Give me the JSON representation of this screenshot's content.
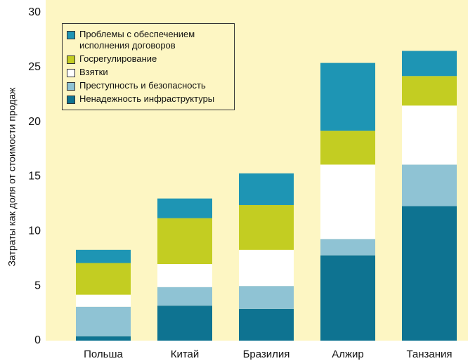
{
  "chart_data": {
    "type": "stacked_bar",
    "y_label": "Затраты как доля от стоимости продаж",
    "categories": [
      "Польша",
      "Китай",
      "Бразилия",
      "Алжир",
      "Танзания"
    ],
    "series": [
      {
        "name": "Ненадежность инфраструктуры",
        "color": "#0e7391",
        "values": [
          0.4,
          3.2,
          2.9,
          7.8,
          12.3
        ]
      },
      {
        "name": "Преступность и безопасность",
        "color": "#8fc3d4",
        "values": [
          2.7,
          1.7,
          2.1,
          1.5,
          3.8
        ]
      },
      {
        "name": "Взятки",
        "color": "#ffffff",
        "values": [
          1.1,
          2.1,
          3.3,
          6.8,
          5.4
        ]
      },
      {
        "name": "Госрегулирование",
        "color": "#c3cd22",
        "values": [
          2.9,
          4.2,
          4.1,
          3.1,
          2.7
        ]
      },
      {
        "name": "Проблемы с обеспечением исполнения договоров",
        "color": "#1e95b4",
        "values": [
          1.2,
          1.8,
          2.9,
          6.2,
          2.3
        ]
      }
    ],
    "ylim": [
      0,
      30
    ],
    "yticks": [
      0,
      5,
      10,
      15,
      20,
      25,
      30
    ],
    "legend": "top-left"
  }
}
